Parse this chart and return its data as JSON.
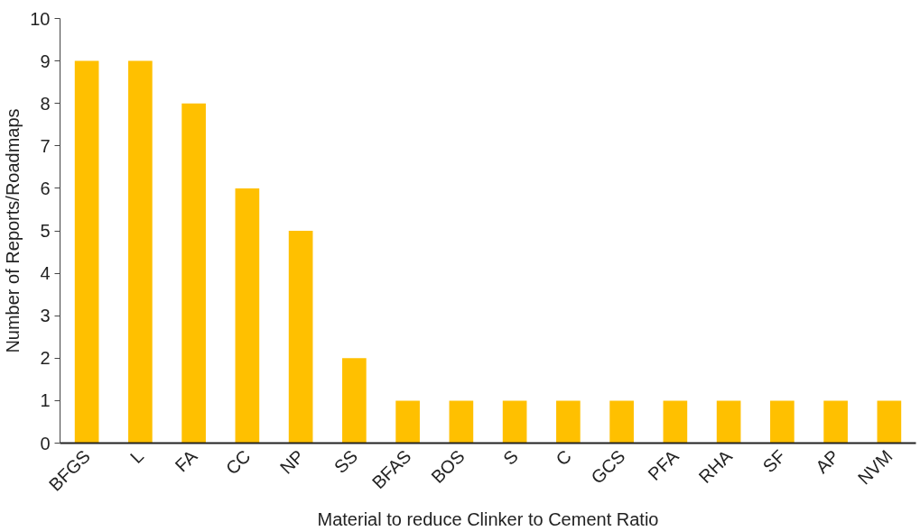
{
  "chart_data": {
    "type": "bar",
    "xlabel": "Material to reduce Clinker to Cement Ratio",
    "ylabel": "Number of Reports/Roadmaps",
    "categories": [
      "BFGS",
      "L",
      "FA",
      "CC",
      "NP",
      "SS",
      "BFAS",
      "BOS",
      "S",
      "C",
      "GCS",
      "PFA",
      "RHA",
      "SF",
      "AP",
      "NVM"
    ],
    "values": [
      9,
      9,
      8,
      6,
      5,
      2,
      1,
      1,
      1,
      1,
      1,
      1,
      1,
      1,
      1,
      1
    ],
    "color": "#ffc000",
    "ylim": [
      0,
      10
    ],
    "yticks": [
      0,
      1,
      2,
      3,
      4,
      5,
      6,
      7,
      8,
      9,
      10
    ],
    "grid": false
  }
}
